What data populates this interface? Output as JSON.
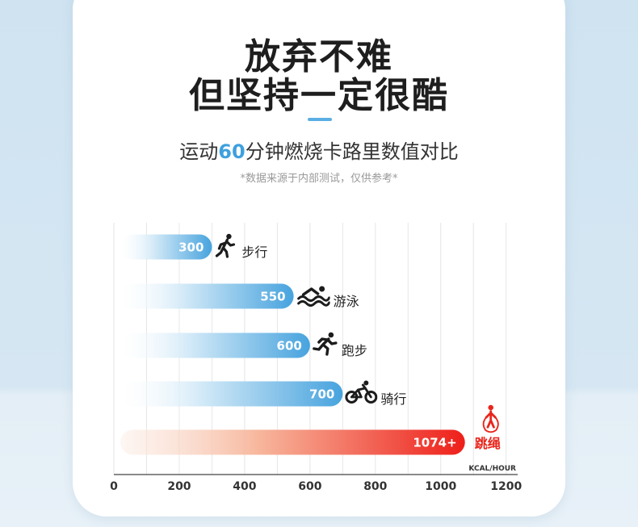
{
  "header": {
    "title_line1": "放弃不难",
    "title_line2": "但坚持一定很酷",
    "subtitle_prefix": "运动",
    "subtitle_number": "60",
    "subtitle_suffix": "分钟燃烧卡路里数值对比",
    "note": "*数据来源于内部测试，仅供参考*"
  },
  "colors": {
    "blue_bar": "#4aa6df",
    "red_bar": "#ee2a1f",
    "highlight_text": "#e8261c",
    "accent": "#5aaee3"
  },
  "chart_data": {
    "type": "bar",
    "orientation": "horizontal",
    "categories": [
      "步行",
      "游泳",
      "跑步",
      "骑行",
      "跳绳"
    ],
    "values": [
      300,
      550,
      600,
      700,
      1074
    ],
    "value_labels": [
      "300",
      "550",
      "600",
      "700",
      "1074+"
    ],
    "icons": [
      "walking-icon",
      "swimming-icon",
      "running-icon",
      "cycling-icon",
      "jump-rope-icon"
    ],
    "xlim": [
      0,
      1260
    ],
    "xticks": [
      0,
      200,
      400,
      600,
      800,
      1000,
      1200
    ],
    "xtick_labels": [
      "0",
      "200",
      "400",
      "600",
      "800",
      "1000",
      "1200"
    ],
    "unit_label": "KCAL/HOUR",
    "grid": "vertical",
    "highlight_category": "跳绳"
  }
}
